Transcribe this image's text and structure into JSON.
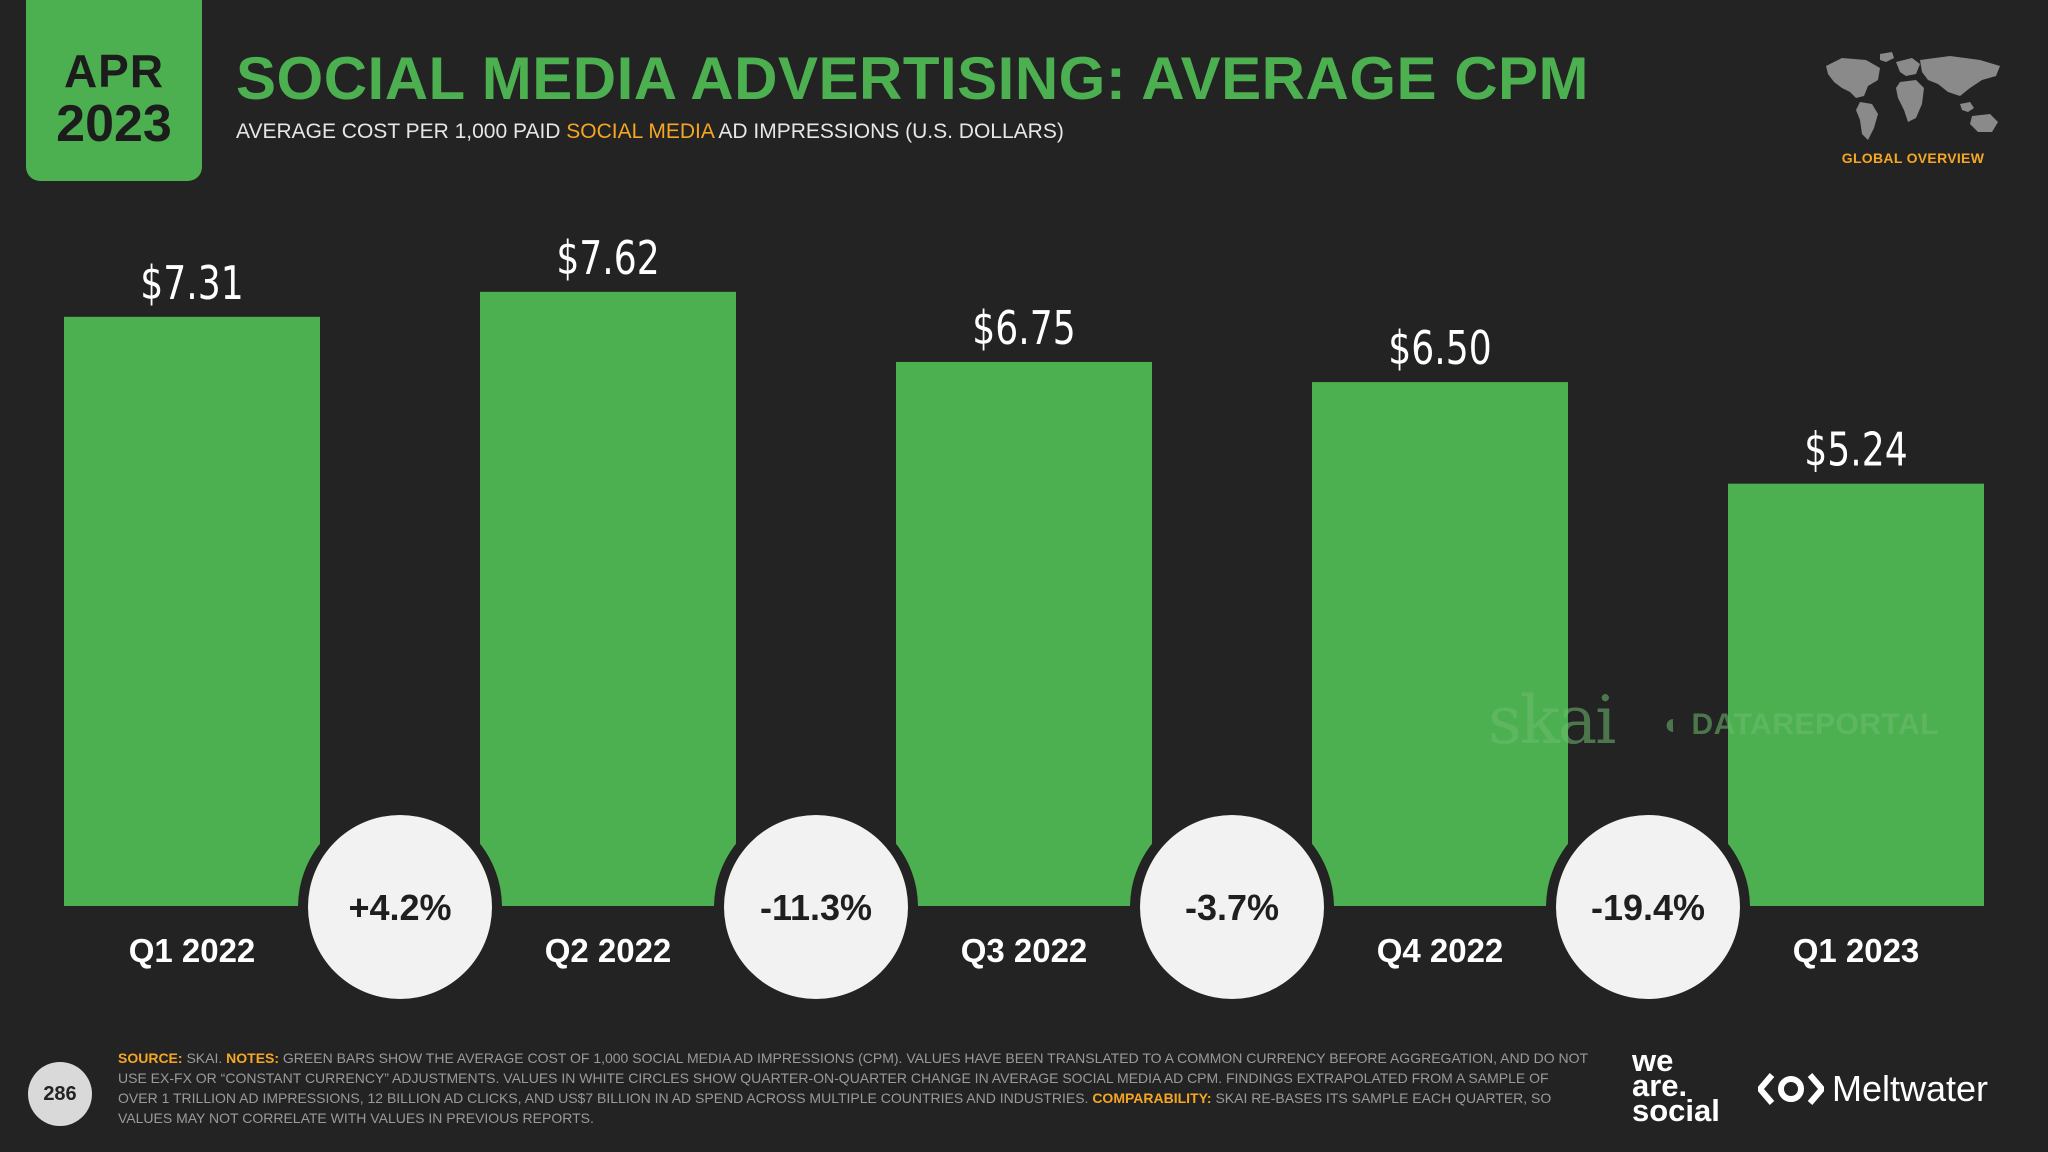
{
  "badge": {
    "month": "APR",
    "year": "2023"
  },
  "header": {
    "title": "SOCIAL MEDIA ADVERTISING: AVERAGE CPM",
    "subtitle_pre": "AVERAGE COST PER 1,000 PAID ",
    "subtitle_highlight": "SOCIAL MEDIA",
    "subtitle_post": " AD IMPRESSIONS (U.S. DOLLARS)",
    "map_label": "GLOBAL OVERVIEW"
  },
  "chart_data": {
    "type": "bar",
    "title": "SOCIAL MEDIA ADVERTISING: AVERAGE CPM",
    "ylabel": "Average cost per 1,000 paid social media ad impressions (U.S. dollars)",
    "xlabel": "",
    "ylim": [
      0,
      8
    ],
    "grid": false,
    "categories": [
      "Q1 2022",
      "Q2 2022",
      "Q3 2022",
      "Q4 2022",
      "Q1 2023"
    ],
    "values": [
      7.31,
      7.62,
      6.75,
      6.5,
      5.24
    ],
    "value_labels": [
      "$7.31",
      "$7.62",
      "$6.75",
      "$6.50",
      "$5.24"
    ],
    "changes": [
      "+4.2%",
      "-11.3%",
      "-3.7%",
      "-19.4%"
    ]
  },
  "watermark": {
    "skai": "skai",
    "datareportal": "DATAREPORTAL"
  },
  "footer": {
    "page_number": "286",
    "source_label": "SOURCE:",
    "source_text": " SKAI. ",
    "notes_label": "NOTES:",
    "notes_text": " GREEN BARS SHOW THE AVERAGE COST OF 1,000 SOCIAL MEDIA AD IMPRESSIONS (CPM). VALUES HAVE BEEN TRANSLATED TO A COMMON CURRENCY BEFORE AGGREGATION, AND DO NOT USE EX-FX OR “CONSTANT CURRENCY” ADJUSTMENTS. VALUES IN WHITE CIRCLES SHOW QUARTER-ON-QUARTER CHANGE IN AVERAGE SOCIAL MEDIA AD CPM. FINDINGS EXTRAPOLATED FROM A SAMPLE OF OVER 1 TRILLION AD IMPRESSIONS, 12 BILLION AD CLICKS, AND US$7 BILLION IN AD SPEND ACROSS MULTIPLE COUNTRIES AND INDUSTRIES. ",
    "comparability_label": "COMPARABILITY:",
    "comparability_text": " SKAI RE-BASES ITS SAMPLE EACH QUARTER, SO VALUES MAY NOT CORRELATE WITH VALUES IN PREVIOUS REPORTS.",
    "brand1_line1": "we",
    "brand1_line2": "are.",
    "brand1_line3": "social",
    "brand2": "Meltwater"
  },
  "colors": {
    "accent": "#4CB050",
    "highlight": "#F5A623",
    "background": "#232323",
    "circle": "#F2F2F2"
  }
}
